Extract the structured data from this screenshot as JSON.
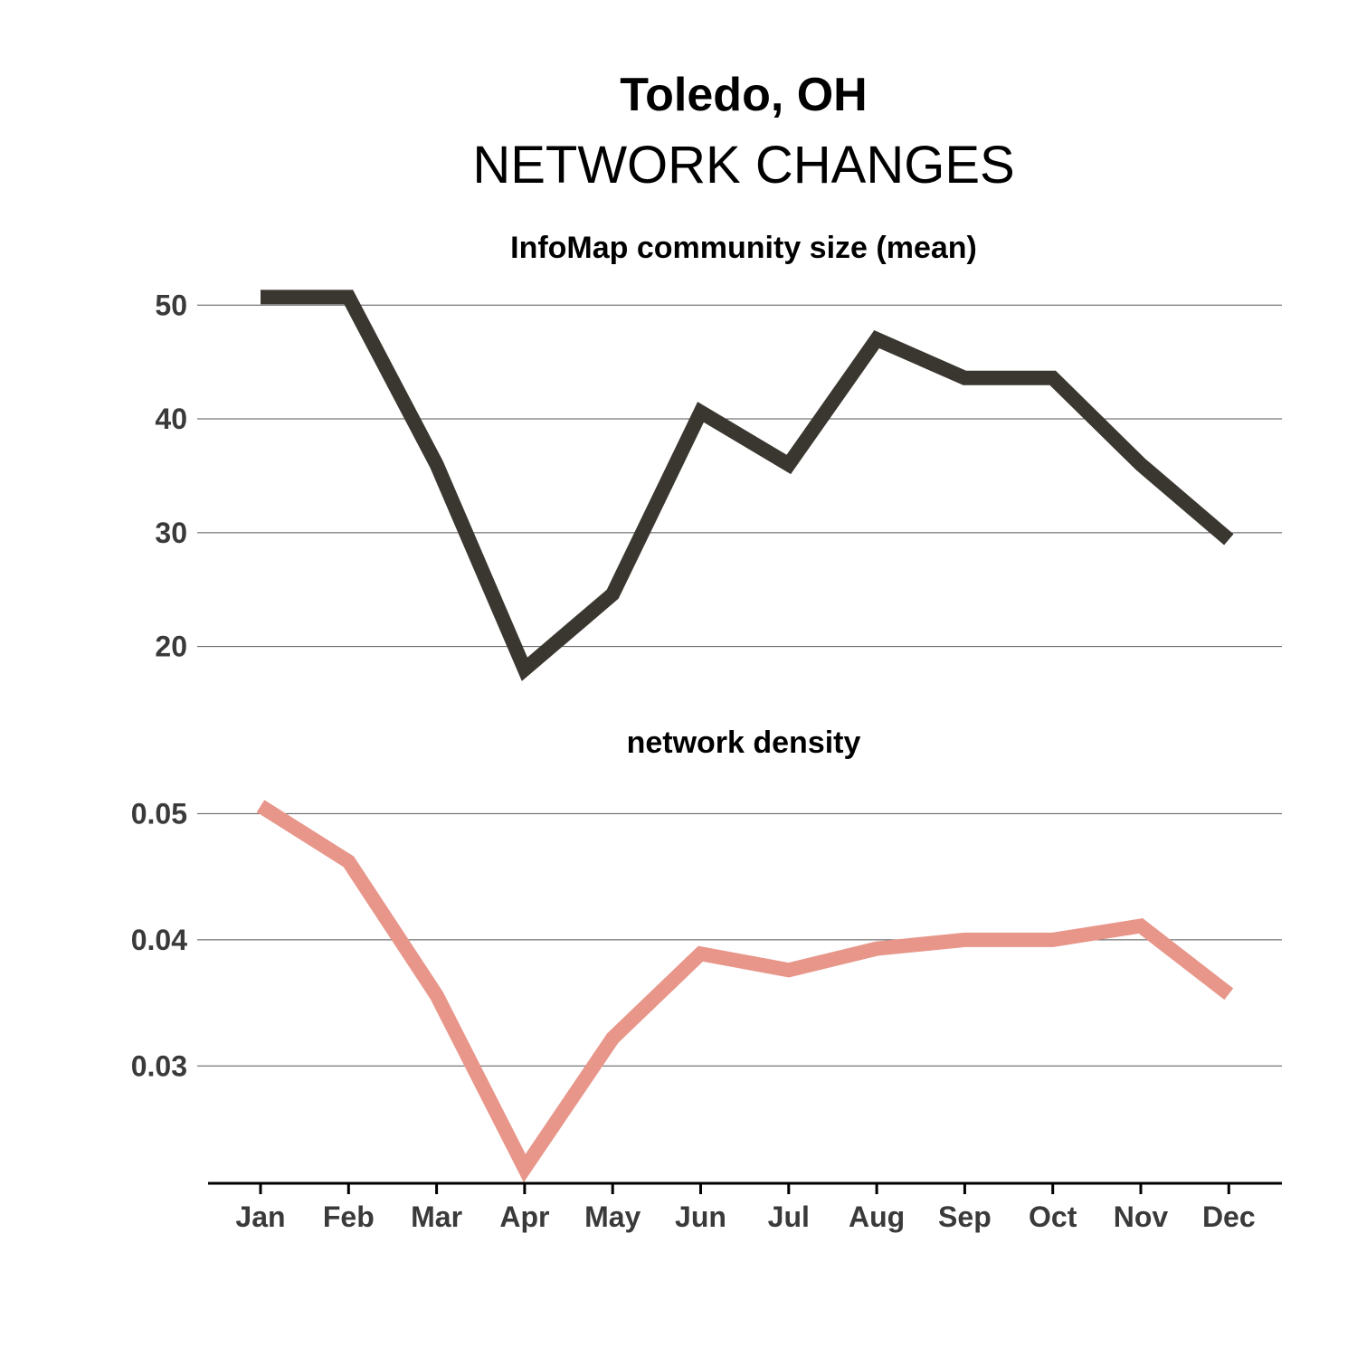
{
  "title": "Toledo, OH",
  "subtitle": "NETWORK CHANGES",
  "chart_data": [
    {
      "type": "line",
      "title": "InfoMap community size (mean)",
      "xlabel": "",
      "ylabel": "",
      "categories": [
        "Jan",
        "Feb",
        "Mar",
        "Apr",
        "May",
        "Jun",
        "Jul",
        "Aug",
        "Sep",
        "Oct",
        "Nov",
        "Dec"
      ],
      "values": [
        50.7,
        50.7,
        36.0,
        18.0,
        24.6,
        40.6,
        36.0,
        47.0,
        43.6,
        43.6,
        36.0,
        29.4
      ],
      "ylim": [
        15.6,
        53.2
      ],
      "yticks": [
        20,
        30,
        40,
        50
      ],
      "ytick_labels": [
        "20",
        "30",
        "40",
        "50"
      ],
      "color": "#3a3730",
      "grid": true
    },
    {
      "type": "line",
      "title": "network density",
      "xlabel": "",
      "ylabel": "",
      "categories": [
        "Jan",
        "Feb",
        "Mar",
        "Apr",
        "May",
        "Jun",
        "Jul",
        "Aug",
        "Sep",
        "Oct",
        "Nov",
        "Dec"
      ],
      "values": [
        0.0506,
        0.0462,
        0.0356,
        0.0219,
        0.0322,
        0.0389,
        0.0376,
        0.0393,
        0.04,
        0.04,
        0.0411,
        0.0357
      ],
      "ylim": [
        0.0207,
        0.0534
      ],
      "yticks": [
        0.03,
        0.04,
        0.05
      ],
      "ytick_labels": [
        "0.03",
        "0.04",
        "0.05"
      ],
      "color": "#e8968a",
      "grid": true
    }
  ]
}
